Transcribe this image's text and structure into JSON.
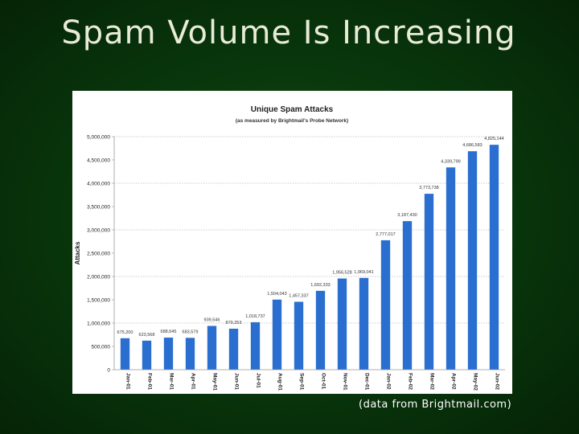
{
  "slide": {
    "title": "Spam Volume Is Increasing",
    "caption": "(data from Brightmail.com)"
  },
  "colors": {
    "background": "#08330b",
    "title_text": "#e8ecd6",
    "bar": "#2a6fd0"
  },
  "chart_data": {
    "type": "bar",
    "title": "Unique Spam Attacks",
    "subtitle": "(as measured by Brightmail's Probe Network)",
    "ylabel": "Attacks",
    "xlabel": "",
    "ylim": [
      0,
      5000000
    ],
    "yticks": [
      0,
      500000,
      1000000,
      1500000,
      2000000,
      2500000,
      3000000,
      3500000,
      4000000,
      4500000,
      5000000
    ],
    "ytick_labels": [
      "0",
      "500,000",
      "1,000,000",
      "1,500,000",
      "2,000,000",
      "2,500,000",
      "3,000,000",
      "3,500,000",
      "4,000,000",
      "4,500,000",
      "5,000,000"
    ],
    "grid": "dotted horizontal at 1,000,000 intervals",
    "legend": "none",
    "categories": [
      "Jan-01",
      "Feb-01",
      "Mar-01",
      "Apr-01",
      "May-01",
      "Jun-01",
      "Jul-01",
      "Aug-01",
      "Sep-01",
      "Oct-01",
      "Nov-01",
      "Dec-01",
      "Jan-02",
      "Feb-02",
      "Mar-02",
      "Apr-02",
      "May-02",
      "Jun-02"
    ],
    "values": [
      675200,
      623568,
      688645,
      683579,
      939546,
      879253,
      1018737,
      1504043,
      1457337,
      1692333,
      1956528,
      1969041,
      2777017,
      3187430,
      3773738,
      4339799,
      4686583,
      4825144
    ],
    "value_labels": [
      "675,200",
      "623,568",
      "688,645",
      "683,579",
      "939,546",
      "879,253",
      "1,018,737",
      "1,504,043",
      "1,457,337",
      "1,692,333",
      "1,956,528",
      "1,969,041",
      "2,777,017",
      "3,187,430",
      "3,773,738",
      "4,339,799",
      "4,686,583",
      "4,825,144"
    ]
  }
}
